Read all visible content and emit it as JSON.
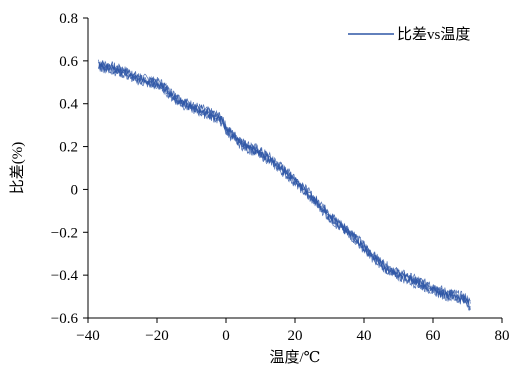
{
  "chart_data": {
    "type": "line",
    "title": "",
    "xlabel": "温度/℃",
    "ylabel": "比差(%)",
    "xlim": [
      -40,
      80
    ],
    "ylim": [
      -0.6,
      0.8
    ],
    "xticks": [
      -40,
      -20,
      0,
      20,
      40,
      60,
      80
    ],
    "yticks": [
      0.8,
      0.6,
      0.4,
      0.2,
      0,
      -0.2,
      -0.4,
      -0.6
    ],
    "xtick_labels": [
      "−40",
      "−20",
      "0",
      "20",
      "40",
      "60",
      "80"
    ],
    "ytick_labels": [
      "0.8",
      "0.6",
      "0.4",
      "0.2",
      "0",
      "−0.2",
      "−0.4",
      "−0.6"
    ],
    "grid": false,
    "legend": {
      "position": "top-right"
    },
    "colors": {
      "series": "#2e56a6",
      "axis": "#000000"
    },
    "noise_amplitude": 0.02,
    "series": [
      {
        "name": "比差vs温度",
        "x": [
          -37,
          -34,
          -30,
          -26,
          -22,
          -19,
          -17,
          -15,
          -12,
          -9,
          -6,
          -3,
          -1,
          0,
          2,
          4,
          6,
          9,
          12,
          15,
          18,
          20,
          22,
          25,
          28,
          31,
          34,
          37,
          40,
          43,
          46,
          49,
          52,
          55,
          58,
          61,
          64,
          67,
          69,
          70,
          71
        ],
        "y": [
          0.58,
          0.57,
          0.55,
          0.52,
          0.5,
          0.49,
          0.46,
          0.43,
          0.4,
          0.38,
          0.36,
          0.34,
          0.32,
          0.28,
          0.25,
          0.22,
          0.2,
          0.18,
          0.15,
          0.11,
          0.07,
          0.04,
          0.01,
          -0.04,
          -0.09,
          -0.14,
          -0.18,
          -0.22,
          -0.27,
          -0.32,
          -0.36,
          -0.39,
          -0.41,
          -0.43,
          -0.45,
          -0.47,
          -0.49,
          -0.5,
          -0.51,
          -0.52,
          -0.55
        ]
      }
    ]
  }
}
